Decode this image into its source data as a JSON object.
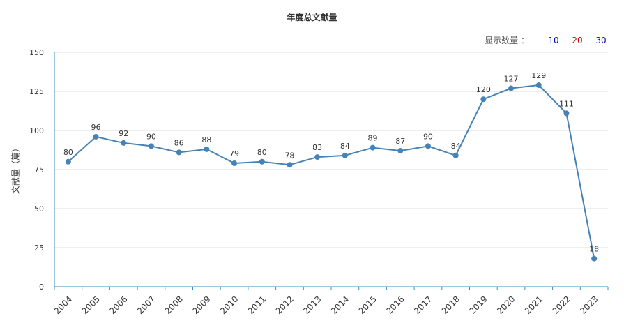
{
  "display_count": {
    "label": "显示数量 ：",
    "options": [
      {
        "label": "10",
        "color": "#0000cc"
      },
      {
        "label": "20",
        "color": "#cc0000"
      },
      {
        "label": "30",
        "color": "#0000aa"
      }
    ]
  },
  "chart_data": {
    "type": "line",
    "title": "年度总文献量",
    "xlabel": "",
    "ylabel": "文献量（篇）",
    "ylim": [
      0,
      150
    ],
    "yticks": [
      "0",
      "25",
      "50",
      "75",
      "100",
      "125",
      "150"
    ],
    "categories": [
      "2004",
      "2005",
      "2006",
      "2007",
      "2008",
      "2009",
      "2010",
      "2011",
      "2012",
      "2013",
      "2014",
      "2015",
      "2016",
      "2017",
      "2018",
      "2019",
      "2020",
      "2021",
      "2022",
      "2023"
    ],
    "series": [
      {
        "values": [
          80,
          96,
          92,
          90,
          86,
          88,
          79,
          80,
          78,
          83,
          84,
          89,
          87,
          90,
          84,
          120,
          127,
          129,
          111,
          18
        ],
        "color": "#4682b4"
      }
    ],
    "data_labels": [
      "80",
      "96",
      "92",
      "90",
      "86",
      "88",
      "79",
      "80",
      "78",
      "83",
      "84",
      "89",
      "87",
      "90",
      "84",
      "120",
      "127",
      "129",
      "111",
      "18"
    ],
    "grid": true,
    "legend": "none"
  }
}
